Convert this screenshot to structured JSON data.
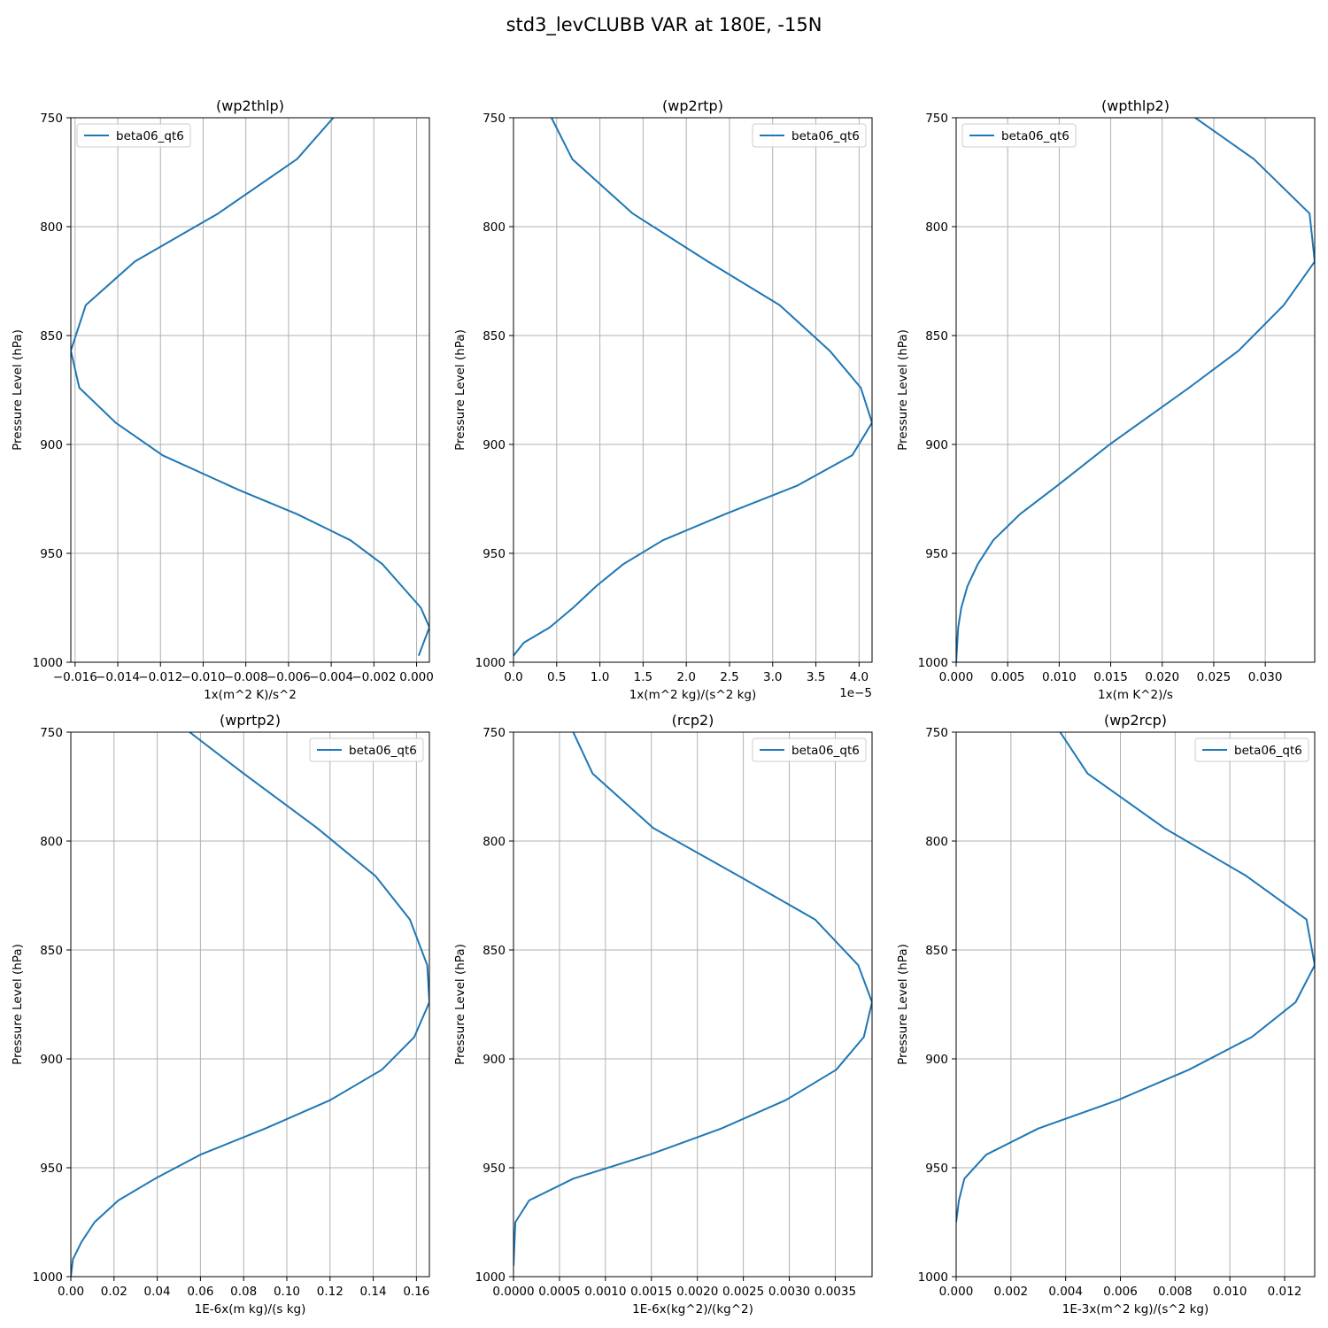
{
  "figure": {
    "suptitle": "std3_levCLUBB VAR at 180E, -15N",
    "line_color": "#1f77b4",
    "grid_color": "#b0b0b0"
  },
  "chart_data": [
    {
      "type": "line",
      "title": "(wp2thlp)",
      "xlabel": "1x(m^2 K)/s^2",
      "ylabel": "Pressure Level (hPa)",
      "offset_text": "",
      "xlim": [
        -0.0162,
        0.0006
      ],
      "ylim": [
        1000,
        750
      ],
      "y_inverted": true,
      "xticks": [
        -0.016,
        -0.014,
        -0.012,
        -0.01,
        -0.008,
        -0.006,
        -0.004,
        -0.002,
        0.0
      ],
      "xtick_labels": [
        "−0.016",
        "−0.014",
        "−0.012",
        "−0.010",
        "−0.008",
        "−0.006",
        "−0.004",
        "−0.002",
        "0.000"
      ],
      "yticks": [
        750,
        800,
        850,
        900,
        950,
        1000
      ],
      "ytick_labels": [
        "750",
        "800",
        "850",
        "900",
        "950",
        "1000"
      ],
      "grid": true,
      "legend_position": "upper left",
      "series": [
        {
          "name": "beta06_qt6",
          "x": [
            -0.0039,
            -0.0056,
            -0.0093,
            -0.0132,
            -0.0155,
            -0.0162,
            -0.0158,
            -0.0141,
            -0.0119,
            -0.0083,
            -0.0056,
            -0.0031,
            -0.0016,
            -0.0007,
            0.0002,
            0.0006,
            0.0001
          ],
          "y": [
            750,
            769,
            794,
            816,
            836,
            857,
            874,
            890,
            905,
            921,
            932,
            944,
            955,
            965,
            975,
            984,
            997
          ]
        }
      ]
    },
    {
      "type": "line",
      "title": "(wp2rtp)",
      "xlabel": "1x(m^2 kg)/(s^2 kg)",
      "ylabel": "Pressure Level (hPa)",
      "offset_text": "1e−5",
      "xlim": [
        0.0,
        4.15
      ],
      "ylim": [
        1000,
        750
      ],
      "y_inverted": true,
      "xticks": [
        0.0,
        0.5,
        1.0,
        1.5,
        2.0,
        2.5,
        3.0,
        3.5,
        4.0
      ],
      "xtick_labels": [
        "0.0",
        "0.5",
        "1.0",
        "1.5",
        "2.0",
        "2.5",
        "3.0",
        "3.5",
        "4.0"
      ],
      "yticks": [
        750,
        800,
        850,
        900,
        950,
        1000
      ],
      "ytick_labels": [
        "750",
        "800",
        "850",
        "900",
        "950",
        "1000"
      ],
      "grid": true,
      "legend_position": "upper right",
      "series": [
        {
          "name": "beta06_qt6",
          "x": [
            0.44,
            0.68,
            1.38,
            2.25,
            3.08,
            3.66,
            4.02,
            4.15,
            3.92,
            3.28,
            2.45,
            1.73,
            1.27,
            0.96,
            0.69,
            0.42,
            0.12,
            0.0
          ],
          "y": [
            750,
            769,
            794,
            816,
            836,
            857,
            874,
            890,
            905,
            919,
            932,
            944,
            955,
            965,
            975,
            984,
            991,
            997
          ]
        }
      ]
    },
    {
      "type": "line",
      "title": "(wpthlp2)",
      "xlabel": "1x(m K^2)/s",
      "ylabel": "Pressure Level (hPa)",
      "offset_text": "",
      "xlim": [
        0.0,
        0.0348
      ],
      "ylim": [
        1000,
        750
      ],
      "y_inverted": true,
      "xticks": [
        0.0,
        0.005,
        0.01,
        0.015,
        0.02,
        0.025,
        0.03
      ],
      "xtick_labels": [
        "0.000",
        "0.005",
        "0.010",
        "0.015",
        "0.020",
        "0.025",
        "0.030"
      ],
      "yticks": [
        750,
        800,
        850,
        900,
        950,
        1000
      ],
      "ytick_labels": [
        "750",
        "800",
        "850",
        "900",
        "950",
        "1000"
      ],
      "grid": true,
      "legend_position": "upper left",
      "series": [
        {
          "name": "beta06_qt6",
          "x": [
            0.0232,
            0.0289,
            0.0343,
            0.0348,
            0.0318,
            0.0274,
            0.0226,
            0.0149,
            0.0098,
            0.0062,
            0.0036,
            0.0021,
            0.0011,
            0.0005,
            0.0002,
            0.0
          ],
          "y": [
            750,
            769,
            794,
            816,
            836,
            857,
            874,
            900,
            919,
            932,
            944,
            955,
            965,
            975,
            984,
            1000
          ]
        }
      ]
    },
    {
      "type": "line",
      "title": "(wprtp2)",
      "xlabel": "1E-6x(m kg)/(s kg)",
      "ylabel": "Pressure Level (hPa)",
      "offset_text": "",
      "xlim": [
        0.0,
        0.166
      ],
      "ylim": [
        1000,
        750
      ],
      "y_inverted": true,
      "xticks": [
        0.0,
        0.02,
        0.04,
        0.06,
        0.08,
        0.1,
        0.12,
        0.14,
        0.16
      ],
      "xtick_labels": [
        "0.00",
        "0.02",
        "0.04",
        "0.06",
        "0.08",
        "0.10",
        "0.12",
        "0.14",
        "0.16"
      ],
      "yticks": [
        750,
        800,
        850,
        900,
        950,
        1000
      ],
      "ytick_labels": [
        "750",
        "800",
        "850",
        "900",
        "950",
        "1000"
      ],
      "grid": true,
      "legend_position": "upper right",
      "series": [
        {
          "name": "beta06_qt6",
          "x": [
            0.055,
            0.08,
            0.114,
            0.141,
            0.157,
            0.165,
            0.166,
            0.159,
            0.144,
            0.12,
            0.09,
            0.06,
            0.039,
            0.022,
            0.011,
            0.005,
            0.001,
            0.0
          ],
          "y": [
            750,
            769,
            794,
            816,
            836,
            857,
            874,
            890,
            905,
            919,
            932,
            944,
            955,
            965,
            975,
            984,
            992,
            1000
          ]
        }
      ]
    },
    {
      "type": "line",
      "title": "(rcp2)",
      "xlabel": "1E-6x(kg^2)/(kg^2)",
      "ylabel": "Pressure Level (hPa)",
      "offset_text": "",
      "xlim": [
        0.0,
        0.0039
      ],
      "ylim": [
        1000,
        750
      ],
      "y_inverted": true,
      "xticks": [
        0.0,
        0.0005,
        0.001,
        0.0015,
        0.002,
        0.0025,
        0.003,
        0.0035
      ],
      "xtick_labels": [
        "0.0000",
        "0.0005",
        "0.0010",
        "0.0015",
        "0.0020",
        "0.0025",
        "0.0030",
        "0.0035"
      ],
      "yticks": [
        750,
        800,
        850,
        900,
        950,
        1000
      ],
      "ytick_labels": [
        "750",
        "800",
        "850",
        "900",
        "950",
        "1000"
      ],
      "grid": true,
      "legend_position": "upper right",
      "series": [
        {
          "name": "beta06_qt6",
          "x": [
            0.00065,
            0.00086,
            0.00152,
            0.00245,
            0.00328,
            0.00375,
            0.0039,
            0.00381,
            0.00351,
            0.00296,
            0.00226,
            0.00148,
            0.00065,
            0.00017,
            2e-05,
            0.0
          ],
          "y": [
            750,
            769,
            794,
            816,
            836,
            857,
            874,
            890,
            905,
            919,
            932,
            944,
            955,
            965,
            975,
            995
          ]
        }
      ]
    },
    {
      "type": "line",
      "title": "(wp2rcp)",
      "xlabel": "1E-3x(m^2 kg)/(s^2 kg)",
      "ylabel": "Pressure Level (hPa)",
      "offset_text": "",
      "xlim": [
        0.0,
        0.0131
      ],
      "ylim": [
        1000,
        750
      ],
      "y_inverted": true,
      "xticks": [
        0.0,
        0.002,
        0.004,
        0.006,
        0.008,
        0.01,
        0.012
      ],
      "xtick_labels": [
        "0.000",
        "0.002",
        "0.004",
        "0.006",
        "0.008",
        "0.010",
        "0.012"
      ],
      "yticks": [
        750,
        800,
        850,
        900,
        950,
        1000
      ],
      "ytick_labels": [
        "750",
        "800",
        "850",
        "900",
        "950",
        "1000"
      ],
      "grid": true,
      "legend_position": "upper right",
      "series": [
        {
          "name": "beta06_qt6",
          "x": [
            0.0038,
            0.0048,
            0.0076,
            0.0106,
            0.0128,
            0.0131,
            0.0124,
            0.0108,
            0.0085,
            0.0059,
            0.003,
            0.0011,
            0.0003,
            0.0001,
            0.0
          ],
          "y": [
            750,
            769,
            794,
            816,
            836,
            857,
            874,
            890,
            905,
            919,
            932,
            944,
            955,
            965,
            975
          ]
        }
      ]
    }
  ]
}
